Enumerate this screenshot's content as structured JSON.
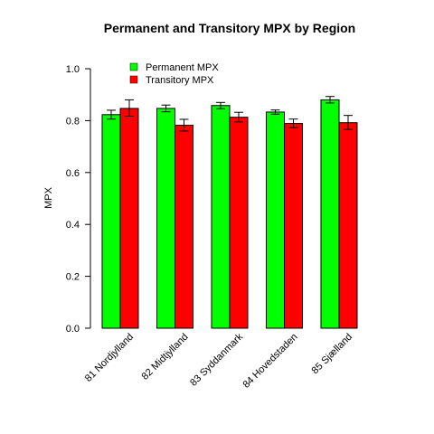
{
  "chart_data": {
    "type": "bar",
    "title": "Permanent and Transitory MPX by  Region",
    "xlabel": "",
    "ylabel": "MPX",
    "ylim": [
      0,
      1.0
    ],
    "yticks": [
      "0.0",
      "0.2",
      "0.4",
      "0.6",
      "0.8",
      "1.0"
    ],
    "grid": false,
    "legend_position": "top-left",
    "categories": [
      "81 Nordjylland",
      "82 Midtjylland",
      "83 Syddanmark",
      "84 Hovedstaden",
      "85 Sjælland"
    ],
    "series": [
      {
        "name": "Permanent MPX",
        "color": "#00ff00",
        "values": [
          0.823,
          0.847,
          0.858,
          0.833,
          0.88
        ],
        "error_low": [
          0.806,
          0.834,
          0.846,
          0.825,
          0.868
        ],
        "error_high": [
          0.84,
          0.86,
          0.87,
          0.841,
          0.893
        ]
      },
      {
        "name": "Transitory MPX",
        "color": "#ff0000",
        "values": [
          0.847,
          0.782,
          0.813,
          0.789,
          0.792
        ],
        "error_low": [
          0.817,
          0.76,
          0.795,
          0.773,
          0.766
        ],
        "error_high": [
          0.88,
          0.805,
          0.832,
          0.806,
          0.82
        ]
      }
    ]
  }
}
